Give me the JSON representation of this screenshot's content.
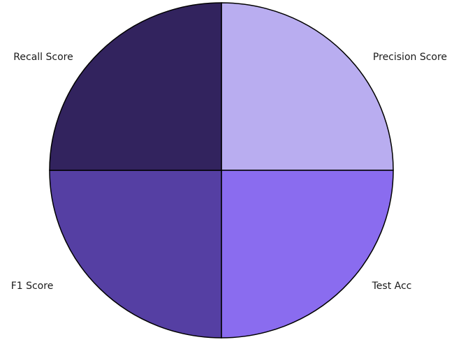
{
  "chart_data": {
    "type": "pie",
    "categories": [
      "Precision Score",
      "Test Acc",
      "F1 Score",
      "Recall Score"
    ],
    "values": [
      25,
      25,
      25,
      25
    ],
    "colors": [
      "#b9adf0",
      "#8a6cef",
      "#553fa3",
      "#32235e"
    ],
    "start_angle_deg": 0,
    "direction": "clockwise-from-top",
    "legend": "none"
  }
}
